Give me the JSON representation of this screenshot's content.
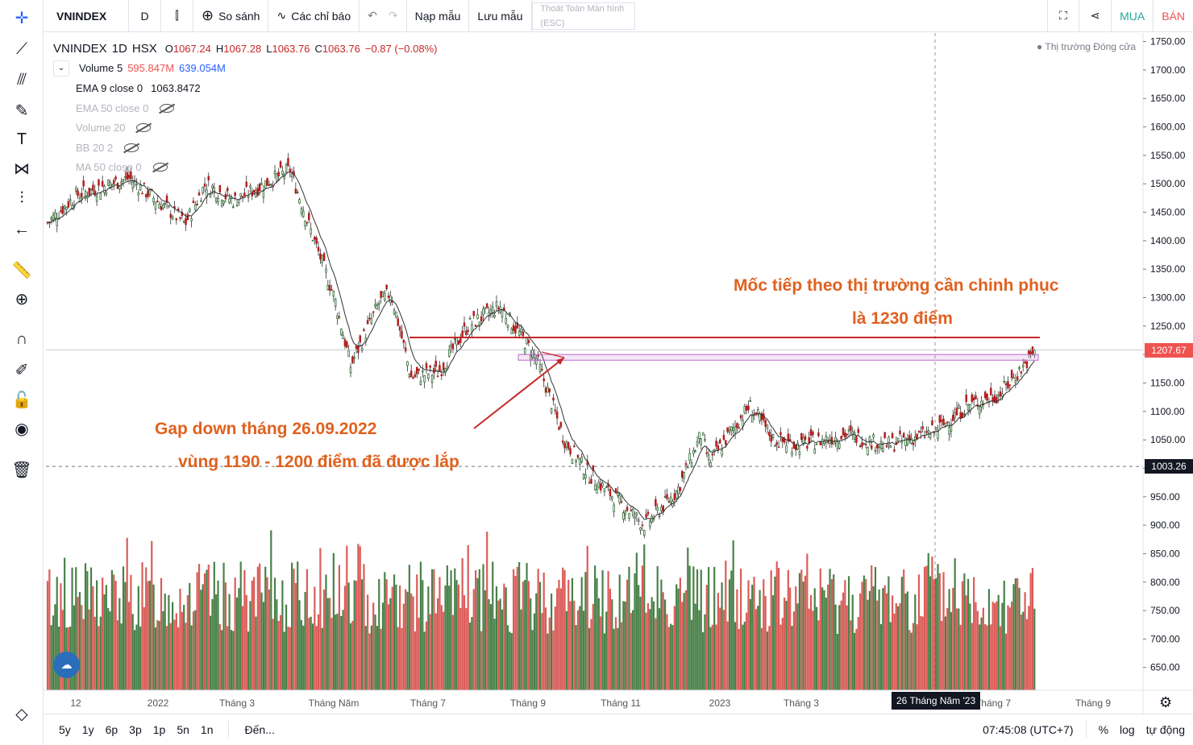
{
  "toolbar": {
    "symbol": "VNINDEX",
    "interval": "D",
    "compare": "So sánh",
    "indicators": "Các chỉ báo",
    "load_template": "Nạp mẫu",
    "save_template": "Lưu mẫu",
    "exit_fullscreen_line1": "Thoát Toàn Màn hình",
    "exit_fullscreen_line2": "(ESC)",
    "buy": "MUA",
    "sell": "BÁN"
  },
  "legend": {
    "symbol": "VNINDEX",
    "interval": "1D",
    "exchange": "HSX",
    "open_label": "O",
    "open": "1067.24",
    "high_label": "H",
    "high": "1067.28",
    "low_label": "L",
    "low": "1063.76",
    "close_label": "C",
    "close": "1063.76",
    "change": "−0.87 (−0.08%)",
    "volume_label": "Volume 5",
    "volume_v1": "595.847M",
    "volume_v2": "639.054M",
    "ema9_label": "EMA 9 close 0",
    "ema9_value": "1063.8472",
    "ema50_label": "EMA 50 close 0",
    "vol20_label": "Volume 20",
    "bb_label": "BB 20 2",
    "ma50_label": "MA 50 close 0"
  },
  "market_status": "Thị trường Đóng cửa",
  "annotations": {
    "top_line1": "Mốc tiếp theo thị trường cần chinh phục",
    "top_line2": "là 1230 điểm",
    "gap_line1": "Gap down tháng 26.09.2022",
    "gap_line2": "vùng 1190 - 1200 điểm đã được lắp"
  },
  "bottom": {
    "ranges": [
      "5y",
      "1y",
      "6p",
      "3p",
      "1p",
      "5n",
      "1n"
    ],
    "goto": "Đến...",
    "clock": "07:45:08 (UTC+7)",
    "percent": "%",
    "log": "log",
    "auto": "tự động"
  },
  "crosshair_date": "26 Tháng Năm '23",
  "colors": {
    "up": "#26a69a",
    "down": "#ef5350",
    "vol_up": "#2e7d32",
    "vol_down": "#e57373",
    "annotation": "#e0611f",
    "resistance": "#c62828"
  },
  "chart_data": {
    "type": "candlestick",
    "title": "VNINDEX",
    "x_ticks": [
      "12",
      "2022",
      "Tháng 3",
      "Tháng Năm",
      "Tháng 7",
      "Tháng 9",
      "Tháng 11",
      "2023",
      "Tháng 3",
      "Tháng 7",
      "Tháng 9"
    ],
    "y_ticks": [
      1750,
      1700,
      1650,
      1600,
      1550,
      1500,
      1450,
      1400,
      1350,
      1300,
      1250,
      1200,
      1150,
      1100,
      1050,
      1000,
      950,
      900,
      850,
      800,
      750,
      700,
      650
    ],
    "ylim": [
      610,
      1765
    ],
    "price_labels": [
      {
        "value": 1207.67,
        "text": "1207.67",
        "color": "#ef5350"
      },
      {
        "value": 1003.26,
        "text": "1003.26",
        "color": "#131722"
      }
    ],
    "close_path": [
      {
        "x": "2021-11",
        "y": 1430
      },
      {
        "x": "2021-12",
        "y": 1480
      },
      {
        "x": "2022-01 start",
        "y": 1510
      },
      {
        "x": "2022-01 low",
        "y": 1430
      },
      {
        "x": "2022-02",
        "y": 1500
      },
      {
        "x": "2022-03",
        "y": 1470
      },
      {
        "x": "2022-04 top",
        "y": 1525
      },
      {
        "x": "2022-04",
        "y": 1420
      },
      {
        "x": "2022-05",
        "y": 1300
      },
      {
        "x": "2022-05 low",
        "y": 1180
      },
      {
        "x": "2022-06",
        "y": 1290
      },
      {
        "x": "2022-06 top",
        "y": 1310
      },
      {
        "x": "2022-07 low",
        "y": 1160
      },
      {
        "x": "2022-07",
        "y": 1170
      },
      {
        "x": "2022-08",
        "y": 1250
      },
      {
        "x": "2022-08 top",
        "y": 1285
      },
      {
        "x": "2022-09",
        "y": 1235
      },
      {
        "x": "2022-09-26",
        "y": 1195
      },
      {
        "x": "2022-10",
        "y": 1050
      },
      {
        "x": "2022-10 low",
        "y": 990
      },
      {
        "x": "2022-11 low",
        "y": 900
      },
      {
        "x": "2022-11",
        "y": 960
      },
      {
        "x": "2022-12",
        "y": 1060
      },
      {
        "x": "2022-12 low",
        "y": 1010
      },
      {
        "x": "2023-01",
        "y": 1070
      },
      {
        "x": "2023-02",
        "y": 1110
      },
      {
        "x": "2023-02 low",
        "y": 1050
      },
      {
        "x": "2023-03",
        "y": 1040
      },
      {
        "x": "2023-04",
        "y": 1060
      },
      {
        "x": "2023-05",
        "y": 1040
      },
      {
        "x": "2023-05-26",
        "y": 1065
      },
      {
        "x": "2023-06",
        "y": 1110
      },
      {
        "x": "2023-07",
        "y": 1130
      },
      {
        "x": "2023-07 end",
        "y": 1180
      },
      {
        "x": "2023-08",
        "y": 1207.67
      }
    ],
    "lines": [
      {
        "name": "resistance",
        "y": 1230
      },
      {
        "name": "gap_zone",
        "y_from": 1190,
        "y_to": 1200
      },
      {
        "name": "horizontal_dashed",
        "y": 1003.26
      },
      {
        "name": "last_price_line",
        "y": 1207.67
      }
    ],
    "volume": {
      "ylabel": "Volume",
      "v1": 595.847,
      "v2": 639.054
    }
  }
}
